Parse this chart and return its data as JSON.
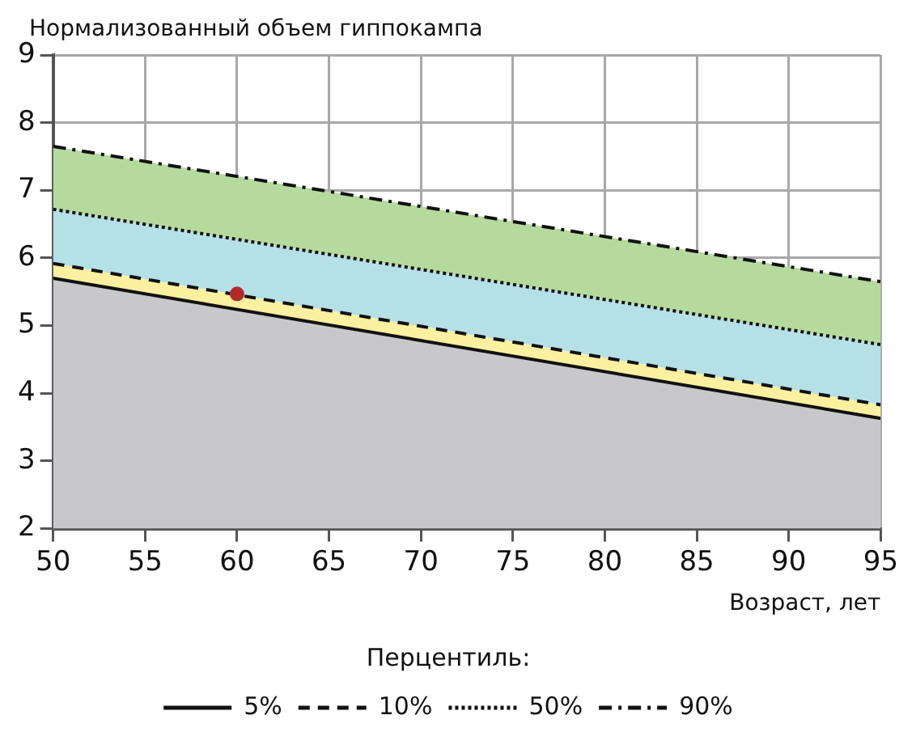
{
  "chart_data": {
    "type": "area",
    "ylabel": "Нормализованный объем гиппокампа",
    "xlabel": "Возраст, лет",
    "legend_title": "Перцентиль:",
    "xlim": [
      50,
      95
    ],
    "xticks": [
      50,
      55,
      60,
      65,
      70,
      75,
      80,
      85,
      90,
      95
    ],
    "ylim": [
      2,
      9
    ],
    "yticks": [
      2,
      3,
      4,
      5,
      6,
      7,
      8,
      9
    ],
    "grid": true,
    "legend": "bottom",
    "marker": "none",
    "series": [
      {
        "name": "5%",
        "color": "#c8c8ca",
        "line_style": "solid",
        "x": [
          50,
          95
        ],
        "values": [
          5.7,
          3.63
        ]
      },
      {
        "name": "10%",
        "color": "#fbf0a0",
        "line_style": "dashed",
        "x": [
          50,
          95
        ],
        "values": [
          5.92,
          3.83
        ]
      },
      {
        "name": "50%",
        "color": "#b5e0e6",
        "line_style": "dotted",
        "x": [
          50,
          95
        ],
        "values": [
          6.72,
          4.72
        ]
      },
      {
        "name": "90%",
        "color": "#b5da9e",
        "line_style": "dashdot",
        "x": [
          50,
          95
        ],
        "values": [
          7.65,
          5.65
        ]
      },
      {
        "type": "scatter",
        "marker": "circle",
        "color": "#b22a2a",
        "x": [
          60
        ],
        "values": [
          5.47
        ]
      }
    ]
  }
}
